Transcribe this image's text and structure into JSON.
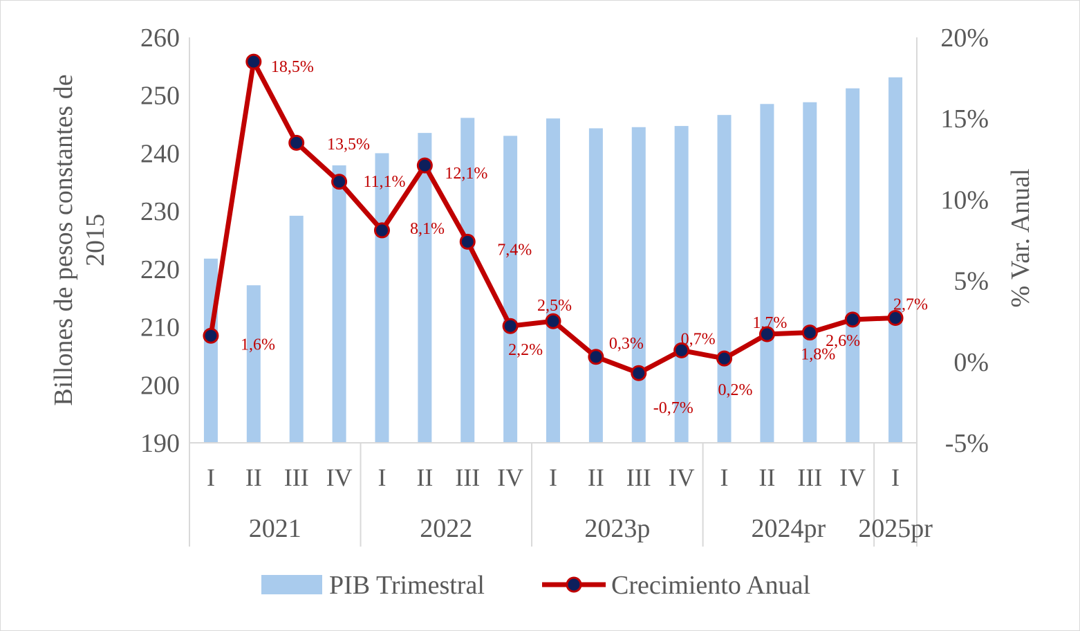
{
  "chart_data": {
    "type": "bar+line",
    "quarters": [
      "I",
      "II",
      "III",
      "IV",
      "I",
      "II",
      "III",
      "IV",
      "I",
      "II",
      "III",
      "IV",
      "I",
      "II",
      "III",
      "IV",
      "I"
    ],
    "years": [
      {
        "label": "2021",
        "count": 4
      },
      {
        "label": "2022",
        "count": 4
      },
      {
        "label": "2023p",
        "count": 4
      },
      {
        "label": "2024pr",
        "count": 4
      },
      {
        "label": "2025pr",
        "count": 1
      }
    ],
    "series": [
      {
        "name": "PIB Trimestral",
        "type": "bar",
        "axis": "left",
        "color": "#a9cbed",
        "values": [
          221.8,
          217.2,
          229.2,
          237.9,
          240.0,
          243.5,
          246.1,
          243.0,
          246.0,
          244.3,
          244.5,
          244.7,
          246.6,
          248.5,
          248.8,
          251.2,
          253.1
        ]
      },
      {
        "name": "Crecimiento Anual",
        "type": "line",
        "axis": "right",
        "color": "#c00000",
        "marker_color": "#0d1f5c",
        "values": [
          1.6,
          18.5,
          13.5,
          11.1,
          8.1,
          12.1,
          7.4,
          2.2,
          2.5,
          0.3,
          -0.7,
          0.7,
          0.2,
          1.7,
          1.8,
          2.6,
          2.7
        ],
        "labels": [
          "1,6%",
          "18,5%",
          "13,5%",
          "11,1%",
          "8,1%",
          "12,1%",
          "7,4%",
          "2,2%",
          "2,5%",
          "0,3%",
          "-0,7%",
          "0,7%",
          "0,2%",
          "1,7%",
          "1,8%",
          "2,6%",
          "2,7%"
        ]
      }
    ],
    "y_left": {
      "label": "Billones de pesos constantes de 2015",
      "label_lines": [
        "Billones de pesos constantes de",
        "2015"
      ],
      "min": 190,
      "max": 260,
      "ticks": [
        "190",
        "200",
        "210",
        "220",
        "230",
        "240",
        "250",
        "260"
      ]
    },
    "y_right": {
      "label": "% Var. Anual",
      "min": -5,
      "max": 20,
      "ticks": [
        "-5%",
        "0%",
        "5%",
        "10%",
        "15%",
        "20%"
      ]
    },
    "legend": {
      "position": "bottom",
      "items": [
        "PIB Trimestral",
        "Crecimiento Anual"
      ]
    },
    "grid": false
  }
}
